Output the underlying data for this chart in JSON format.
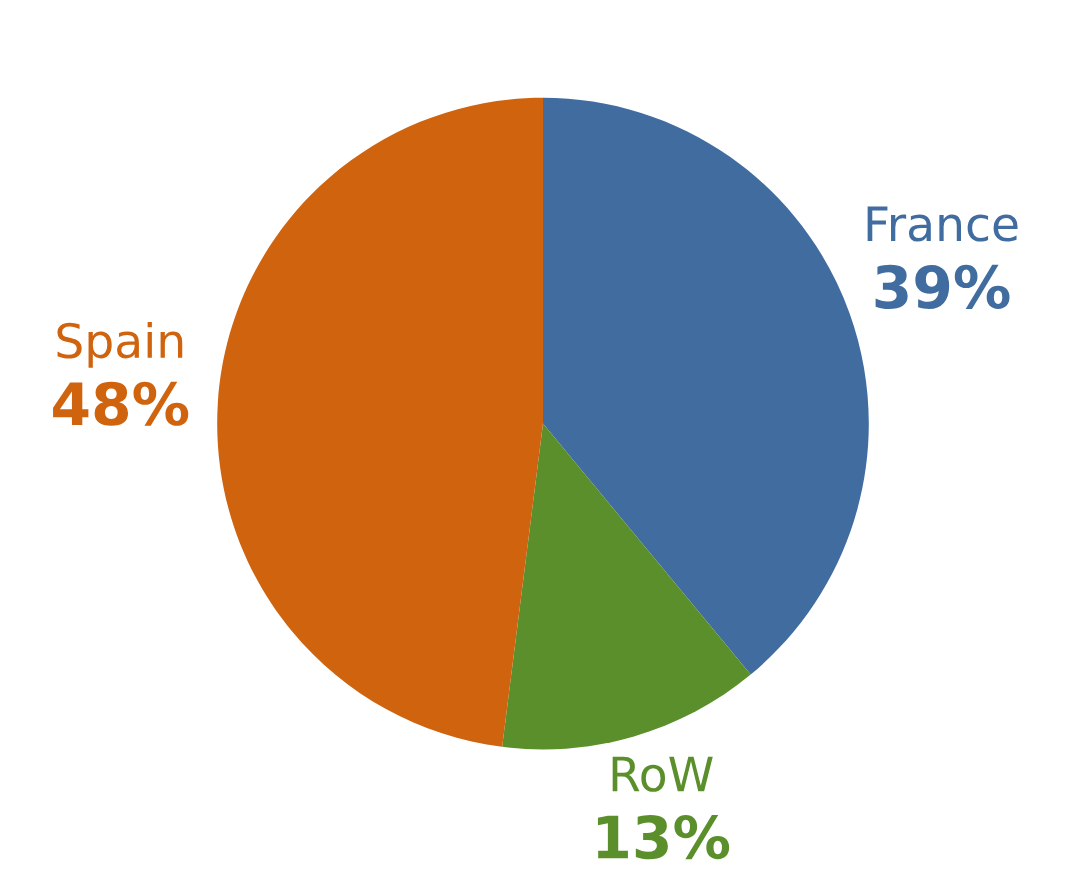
{
  "chart_data": {
    "type": "pie",
    "categories": [
      "France",
      "RoW",
      "Spain"
    ],
    "values": [
      39,
      13,
      48
    ],
    "colors": [
      "#416c9f",
      "#5b8f2b",
      "#d0630e"
    ],
    "value_labels": [
      "39%",
      "13%",
      "48%"
    ]
  }
}
